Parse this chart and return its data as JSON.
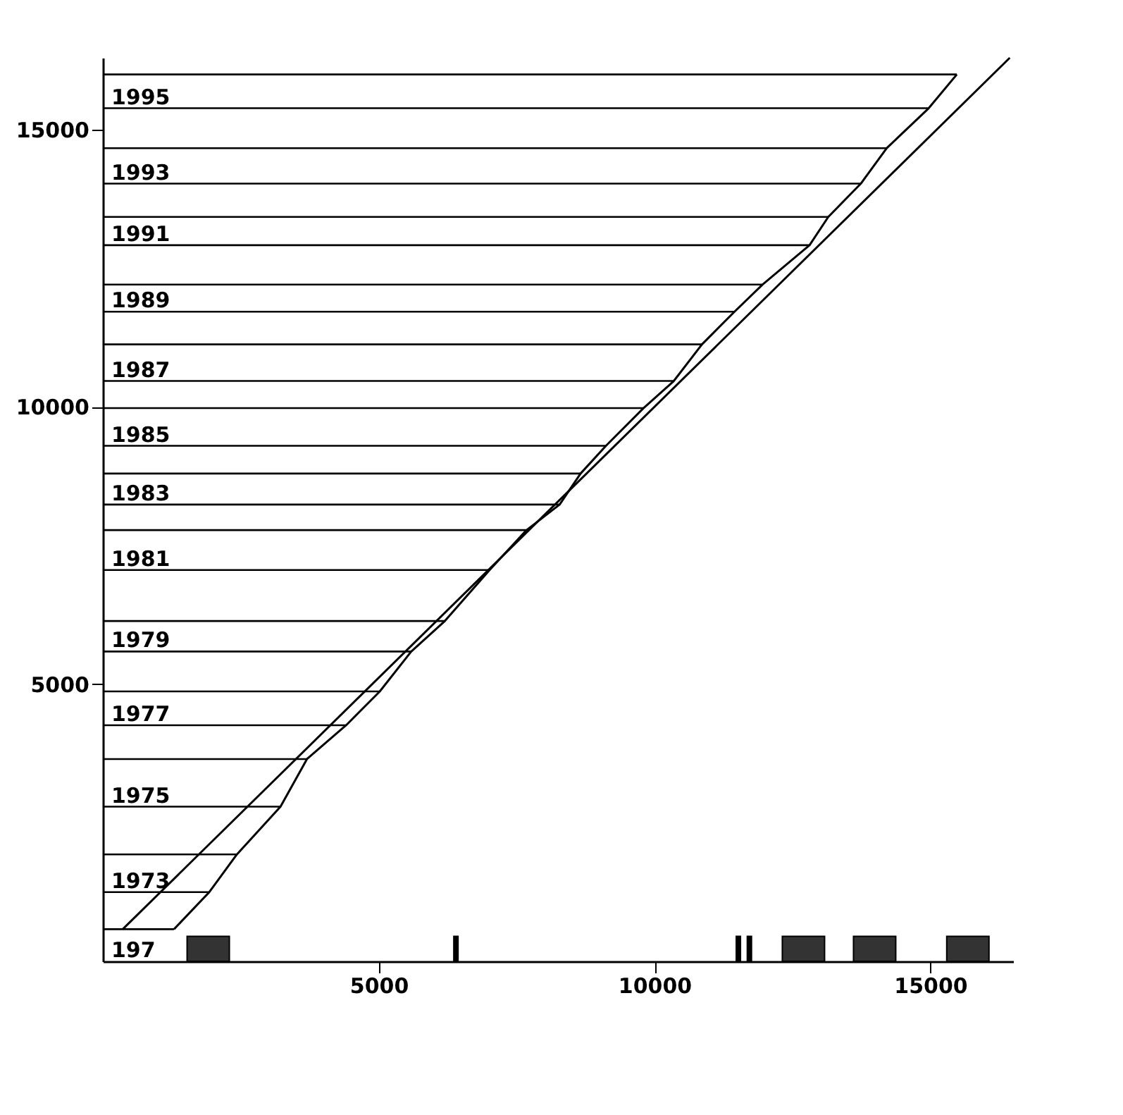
{
  "chart_data": {
    "type": "line",
    "xlim": [
      0,
      16500
    ],
    "ylim": [
      0,
      16300
    ],
    "xticks": [
      {
        "value": 5000,
        "label": "5000"
      },
      {
        "value": 10000,
        "label": "10000"
      },
      {
        "value": 15000,
        "label": "15000"
      }
    ],
    "yticks": [
      {
        "value": 5000,
        "label": "5000"
      },
      {
        "value": 10000,
        "label": "10000"
      },
      {
        "value": 15000,
        "label": "15000"
      }
    ],
    "grid": false,
    "series": [
      {
        "color": "#000000",
        "x": [
          1290,
          1930,
          2430,
          3220,
          3700,
          4410,
          5020,
          5590,
          6200,
          7010,
          7680,
          8280,
          8660,
          9120,
          9800,
          10350,
          10860,
          11450,
          11960,
          12810,
          13150,
          13740,
          14210,
          14970,
          15480
        ],
        "values": [
          580,
          1250,
          1930,
          2790,
          3650,
          4260,
          4870,
          5590,
          6140,
          7060,
          7780,
          8240,
          8800,
          9300,
          9980,
          10470,
          11130,
          11720,
          12210,
          12920,
          13430,
          14030,
          14670,
          15390,
          16000
        ],
        "xerrors": [
          [
            0,
            1290
          ],
          [
            0,
            1930
          ],
          [
            0,
            2430
          ],
          [
            0,
            3220
          ],
          [
            0,
            3700
          ],
          [
            0,
            4410
          ],
          [
            0,
            5020
          ],
          [
            0,
            5590
          ],
          [
            0,
            6200
          ],
          [
            0,
            7010
          ],
          [
            0,
            7680
          ],
          [
            0,
            8280
          ],
          [
            0,
            8660
          ],
          [
            0,
            9120
          ],
          [
            0,
            9800
          ],
          [
            0,
            10350
          ],
          [
            0,
            10860
          ],
          [
            0,
            11450
          ],
          [
            0,
            11960
          ],
          [
            0,
            12810
          ],
          [
            0,
            13150
          ],
          [
            0,
            13740
          ],
          [
            0,
            14210
          ],
          [
            0,
            14970
          ],
          [
            0,
            15480
          ]
        ]
      },
      {
        "color": "#000000",
        "x": [
          360,
          16440
        ],
        "values": [
          580,
          16300
        ]
      },
      {
        "type": "bar",
        "color": "#333333",
        "x": [
          1910,
          12700,
          13990,
          15680
        ],
        "values": [
          450,
          450,
          450,
          450
        ]
      },
      {
        "type": "bar",
        "color": "#000000",
        "x": [
          6400,
          11520,
          11720
        ],
        "values": [
          450,
          450,
          450
        ]
      }
    ],
    "annotations": [
      "197",
      {
        "text": "1973",
        "y": 1250
      },
      {
        "text": "1975",
        "y": 2790
      },
      {
        "text": "1977",
        "y": 4260
      },
      {
        "text": "1979",
        "y": 5590
      },
      {
        "text": "1981",
        "y": 7060
      },
      {
        "text": "1983",
        "y": 8240
      },
      {
        "text": "1985",
        "y": 9300
      },
      {
        "text": "1987",
        "y": 10470
      },
      {
        "text": "1989",
        "y": 11720
      },
      {
        "text": "1991",
        "y": 12920
      },
      {
        "text": "1993",
        "y": 14030
      },
      {
        "text": "1995",
        "y": 15390
      }
    ]
  }
}
